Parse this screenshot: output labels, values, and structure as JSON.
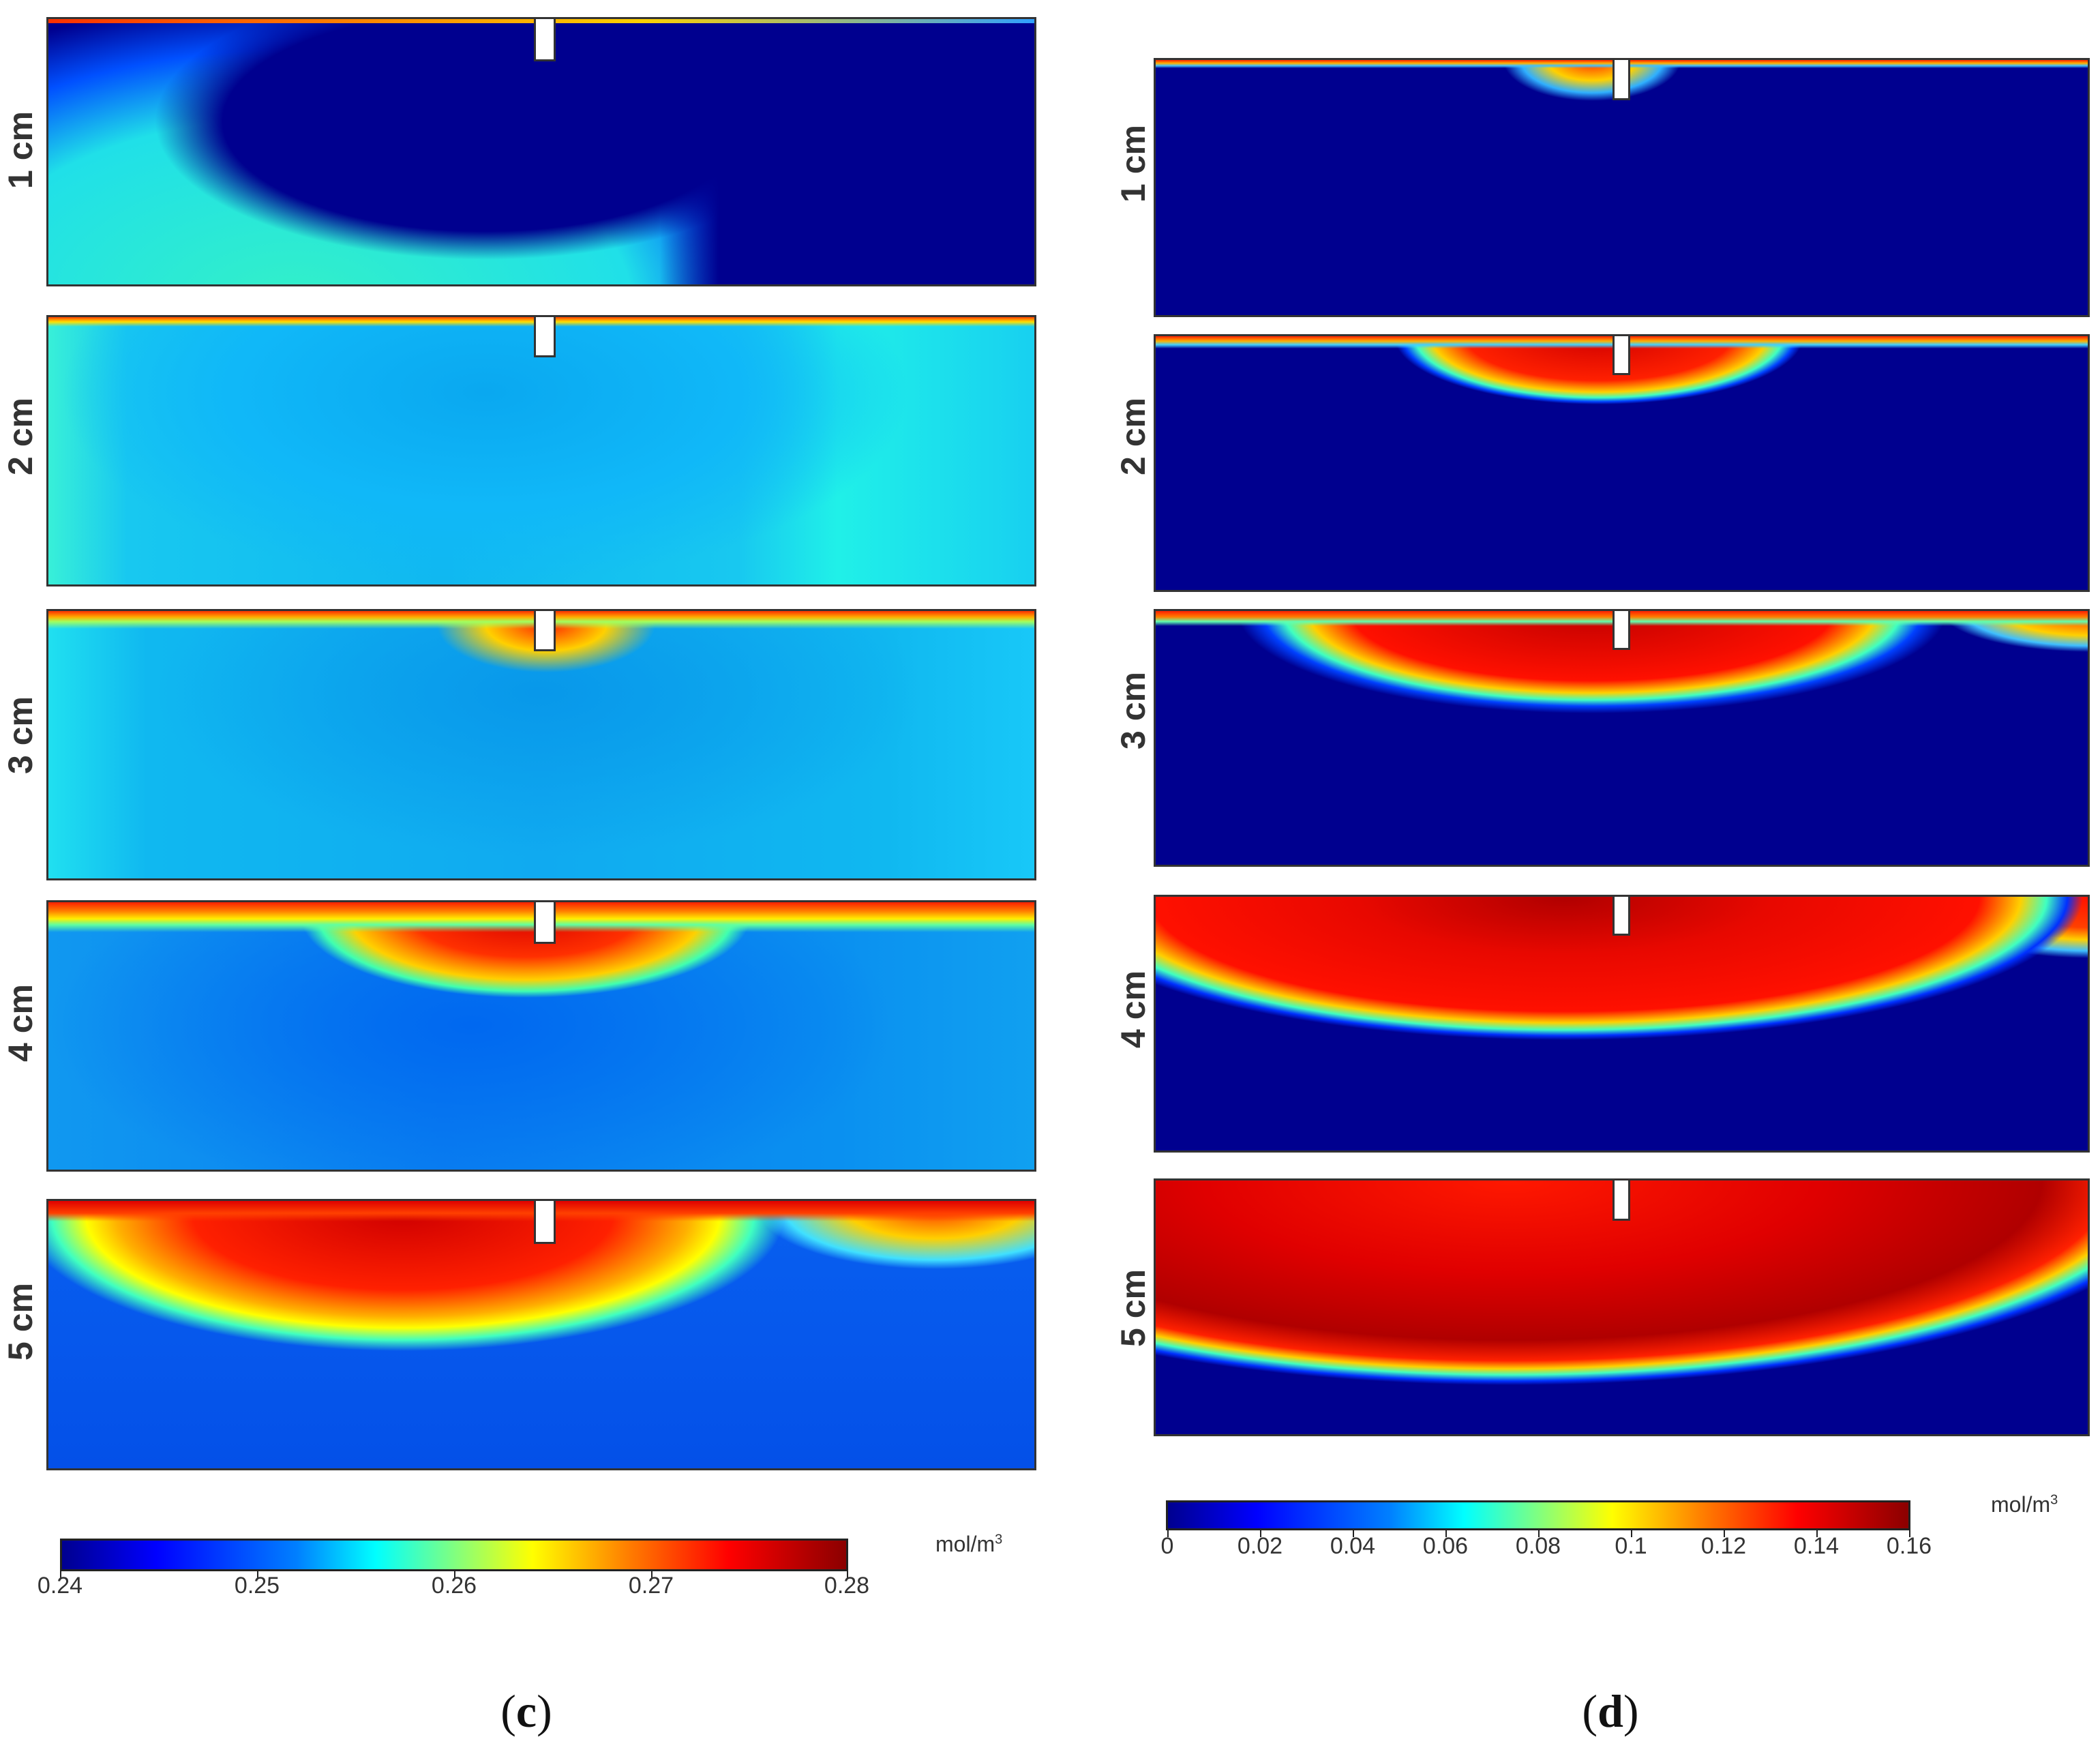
{
  "figure": {
    "left": {
      "rows": [
        "1 cm",
        "2 cm",
        "3 cm",
        "4 cm",
        "5 cm"
      ],
      "colorbar": {
        "ticks": [
          "0.24",
          "0.25",
          "0.26",
          "0.27",
          "0.28"
        ],
        "unit_base": "mol/m",
        "unit_exp": "3"
      },
      "label_paren_open": "(",
      "label_letter": "c",
      "label_paren_close": ")"
    },
    "right": {
      "rows": [
        "1 cm",
        "2 cm",
        "3 cm",
        "4 cm",
        "5 cm"
      ],
      "colorbar": {
        "ticks": [
          "0",
          "0.02",
          "0.04",
          "0.06",
          "0.08",
          "0.1",
          "0.12",
          "0.14",
          "0.16"
        ],
        "unit_base": "mol/m",
        "unit_exp": "3"
      },
      "label_paren_open": "(",
      "label_letter": "d",
      "label_paren_close": ")"
    }
  },
  "colors": {
    "jet_dark_blue": "#00008f",
    "jet_blue": "#0050ff",
    "jet_cyan": "#00e0ff",
    "jet_yellow": "#ffff00",
    "jet_red": "#ff1a00",
    "jet_dark_red": "#8b0000",
    "frame": "#333333"
  }
}
